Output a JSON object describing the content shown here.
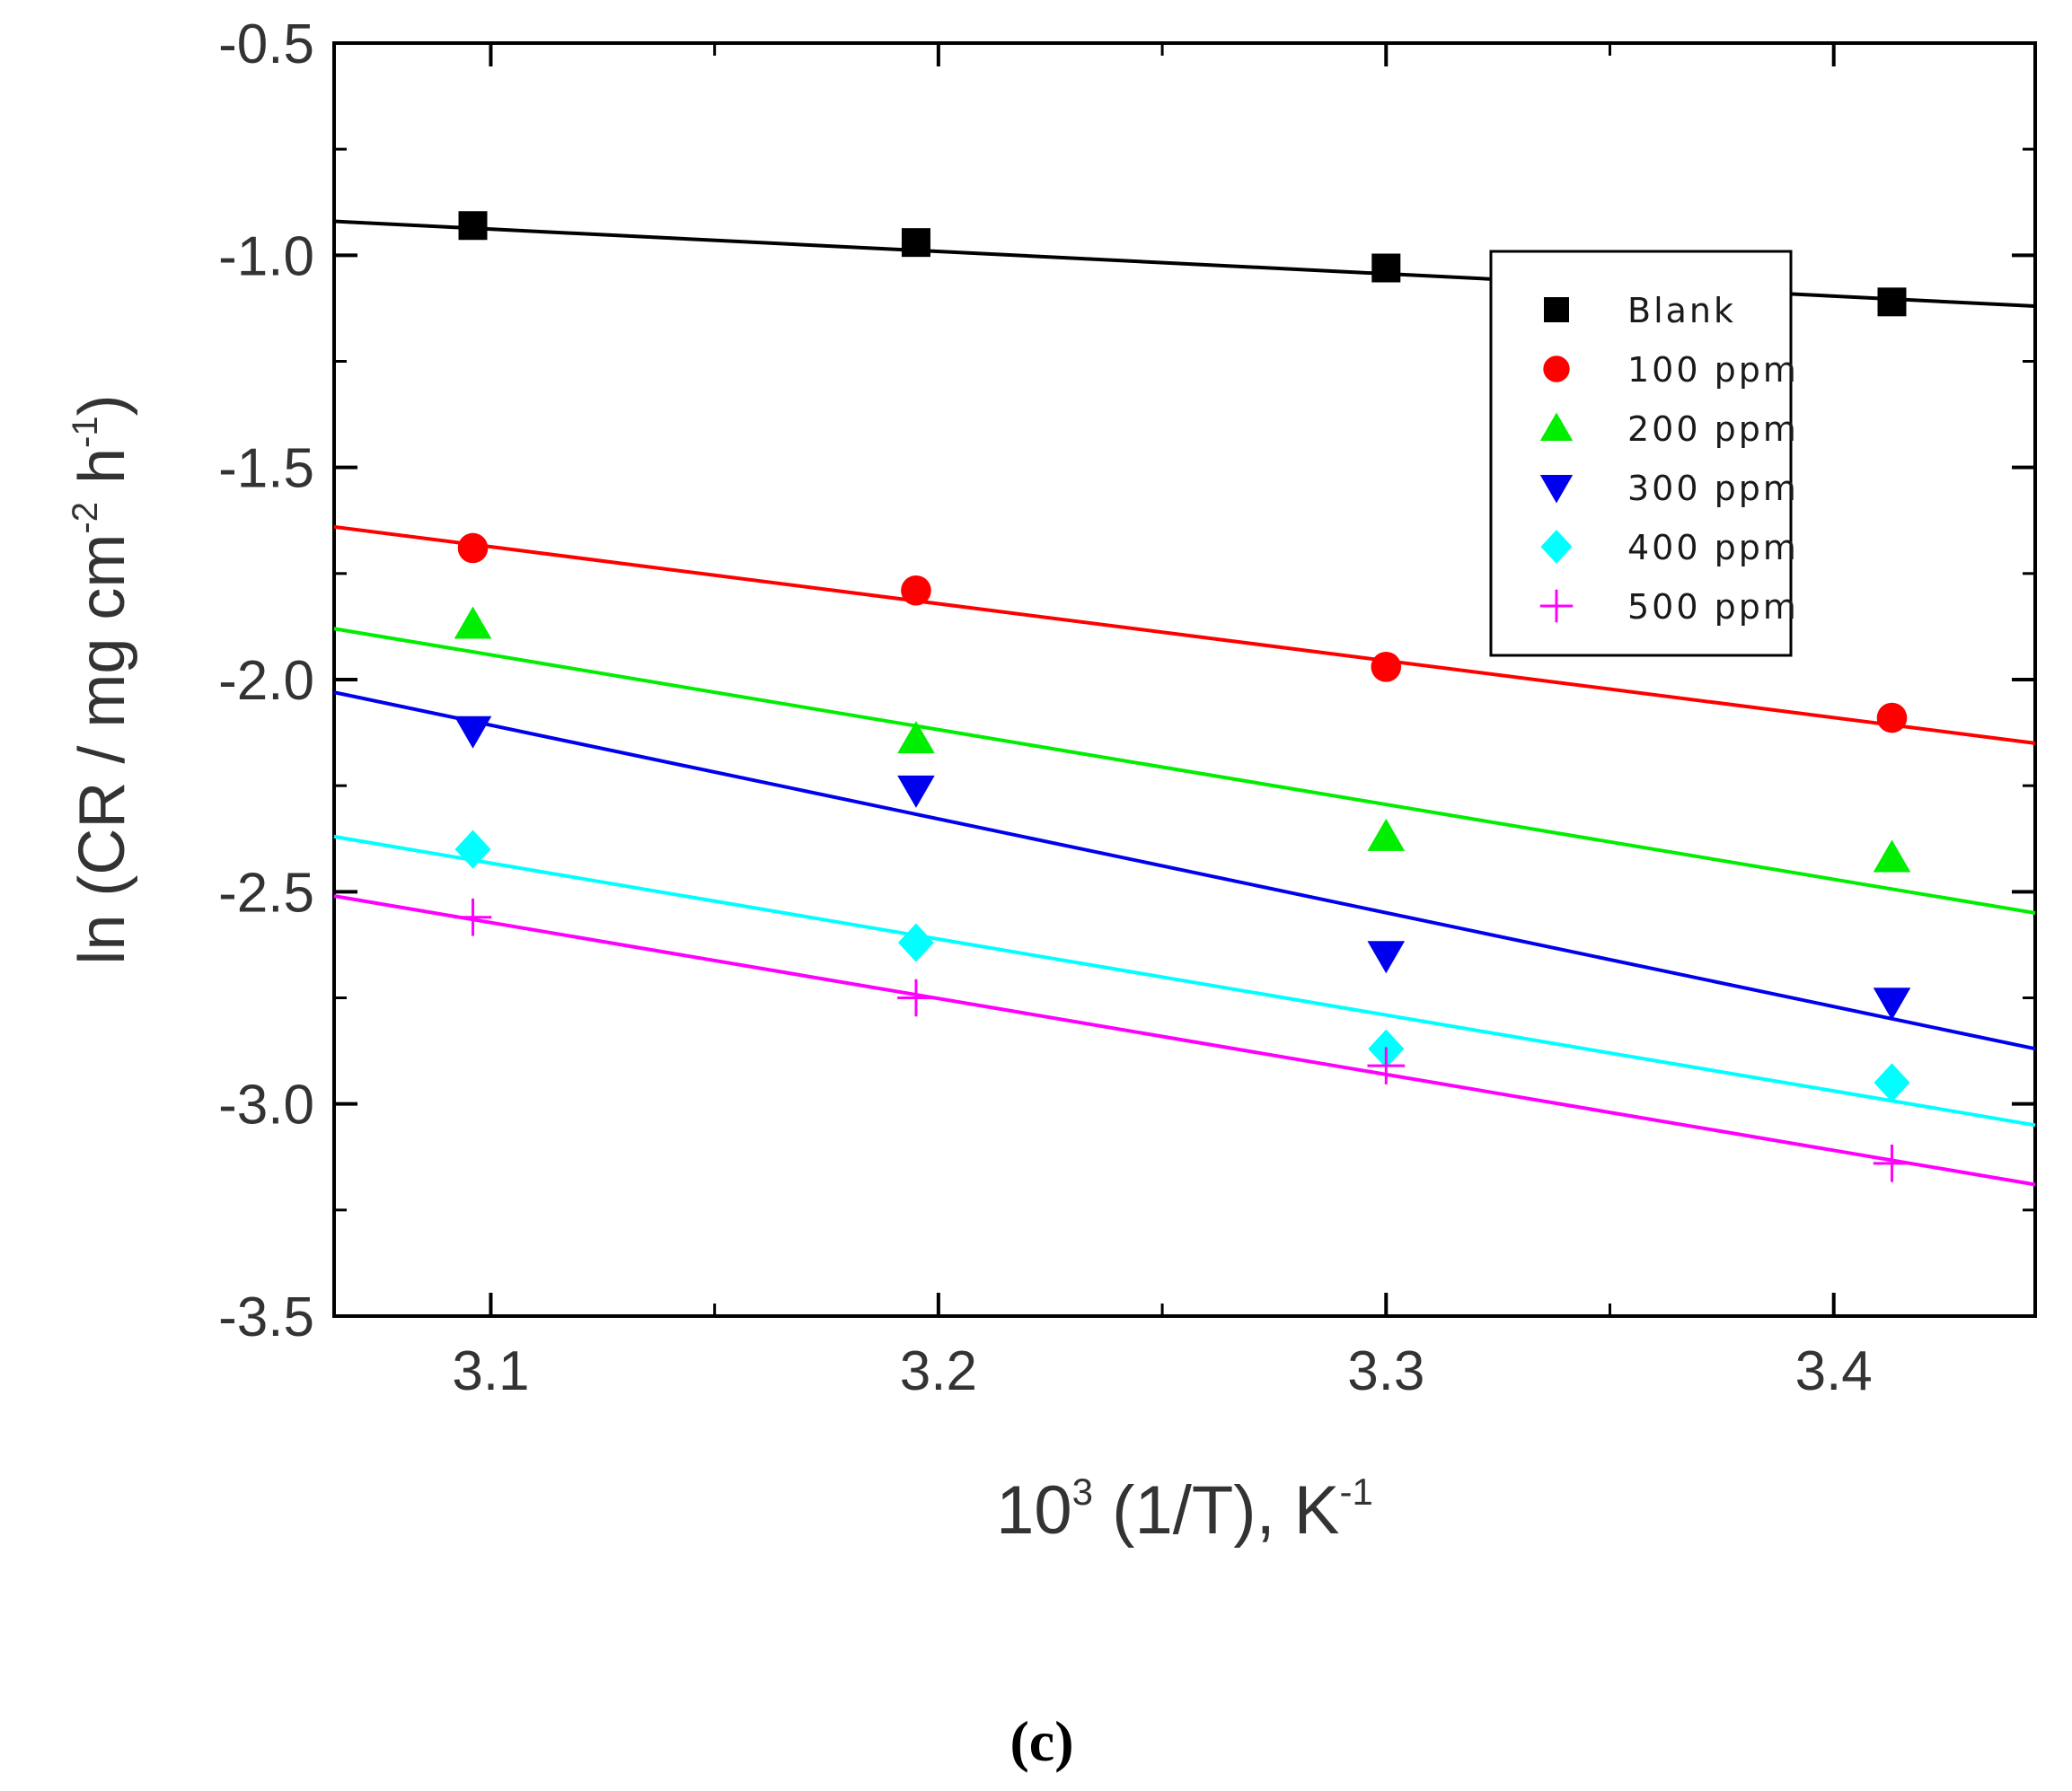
{
  "chart_data": {
    "type": "scatter",
    "title": "",
    "xlabel": "10^3 (1/T), K^-1",
    "ylabel": "ln (CR / mg cm^-2 h^-1)",
    "xlim": [
      3.065,
      3.445
    ],
    "ylim": [
      -3.5,
      -0.5
    ],
    "xticks": [
      3.1,
      3.2,
      3.3,
      3.4
    ],
    "xtick_labels": [
      "3.1",
      "3.2",
      "3.3",
      "3.4"
    ],
    "yticks": [
      -0.5,
      -1.0,
      -1.5,
      -2.0,
      -2.5,
      -3.0,
      -3.5
    ],
    "ytick_labels": [
      "-0.5",
      "-1.0",
      "-1.5",
      "-2.0",
      "-2.5",
      "-3.0",
      "-3.5"
    ],
    "x": [
      3.096,
      3.195,
      3.3,
      3.413
    ],
    "series": [
      {
        "name": "Blank",
        "color": "#000000",
        "marker": "square",
        "values": [
          -0.93,
          -0.97,
          -1.03,
          -1.11
        ],
        "fit": [
          [
            3.065,
            -0.92
          ],
          [
            3.445,
            -1.12
          ]
        ]
      },
      {
        "name": "100 ppm",
        "color": "#ff0000",
        "marker": "circle",
        "values": [
          -1.69,
          -1.79,
          -1.97,
          -2.09
        ],
        "fit": [
          [
            3.065,
            -1.64
          ],
          [
            3.445,
            -2.15
          ]
        ]
      },
      {
        "name": "200 ppm",
        "color": "#00ee00",
        "marker": "triangle-up",
        "values": [
          -1.87,
          -2.14,
          -2.37,
          -2.42
        ],
        "fit": [
          [
            3.065,
            -1.88
          ],
          [
            3.445,
            -2.55
          ]
        ]
      },
      {
        "name": "300 ppm",
        "color": "#0000ee",
        "marker": "triangle-down",
        "values": [
          -2.12,
          -2.26,
          -2.65,
          -2.76
        ],
        "fit": [
          [
            3.065,
            -2.03
          ],
          [
            3.445,
            -2.87
          ]
        ]
      },
      {
        "name": "400 ppm",
        "color": "#00ffff",
        "marker": "diamond",
        "values": [
          -2.4,
          -2.62,
          -2.87,
          -2.95
        ],
        "fit": [
          [
            3.065,
            -2.37
          ],
          [
            3.445,
            -3.05
          ]
        ]
      },
      {
        "name": "500 ppm",
        "color": "#ff00ff",
        "marker": "plus",
        "values": [
          -2.56,
          -2.75,
          -2.91,
          -3.14
        ],
        "fit": [
          [
            3.065,
            -2.51
          ],
          [
            3.445,
            -3.19
          ]
        ]
      }
    ],
    "legend_position": "top-right",
    "grid": false
  },
  "axis_labels": {
    "x_base": "10",
    "x_exp": "3",
    "x_rest": " (1/T), K",
    "x_rest_exp": "-1",
    "y_prefix": "ln (CR / mg cm",
    "y_exp1": "-2",
    "y_mid": " h",
    "y_exp2": "-1",
    "y_suffix": ")"
  },
  "panel_label": "(c)"
}
